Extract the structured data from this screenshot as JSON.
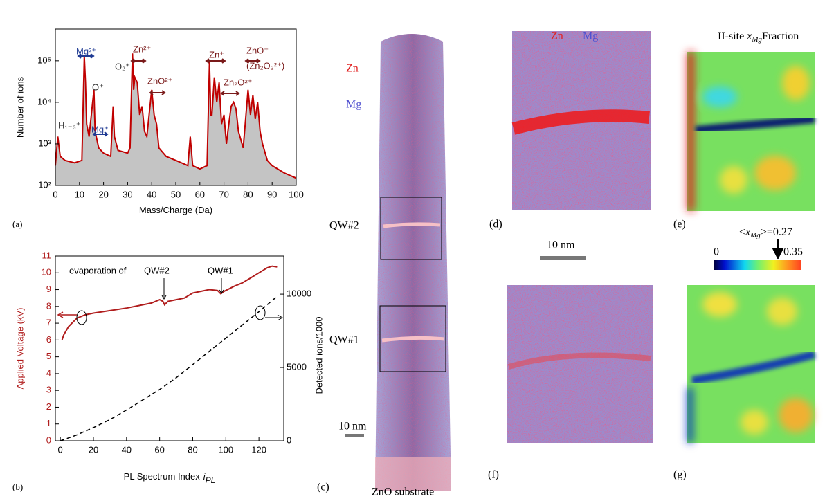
{
  "chart_data": [
    {
      "type": "line",
      "panel_label": "(a)",
      "xlabel": "Mass/Charge (Da)",
      "ylabel": "Number of ions",
      "log_scale_y": true,
      "xlim": [
        0,
        100
      ],
      "xticks": [
        0,
        10,
        20,
        30,
        40,
        50,
        60,
        70,
        80,
        90,
        100
      ],
      "ylim": [
        100,
        580000
      ],
      "yticks": [
        {
          "value": 100,
          "label": "10²"
        },
        {
          "value": 1000,
          "label": "10³"
        },
        {
          "value": 10000,
          "label": "10⁴"
        },
        {
          "value": 100000,
          "label": "10⁵"
        }
      ],
      "series": [
        {
          "color": "#c00000",
          "fill": "#c4c4c4",
          "x": [
            0,
            1,
            2,
            4,
            8,
            11,
            12,
            12.5,
            13,
            14,
            16,
            16.5,
            18,
            20,
            23,
            24,
            24.5,
            26,
            30,
            31,
            32,
            32.5,
            33,
            34,
            35,
            36,
            37,
            38,
            40,
            41,
            42,
            43,
            46,
            50,
            55,
            56,
            57,
            60,
            63,
            64,
            64.5,
            65,
            66,
            67,
            68,
            69,
            70,
            71,
            72,
            73,
            74,
            75,
            76,
            78,
            80,
            81,
            82,
            83,
            84,
            85,
            86,
            88,
            90,
            95,
            100
          ],
          "values": [
            300,
            1500,
            500,
            400,
            350,
            400,
            130000,
            30000,
            3000,
            1500,
            20000,
            2000,
            800,
            600,
            500,
            8000,
            1500,
            700,
            600,
            800,
            150000,
            20000,
            40000,
            30000,
            5000,
            8000,
            2000,
            1500,
            20000,
            5000,
            3000,
            800,
            500,
            400,
            300,
            1500,
            300,
            250,
            300,
            100000,
            5000,
            5000,
            40000,
            10000,
            30000,
            3000,
            5000,
            1000,
            3000,
            8000,
            10000,
            7000,
            2000,
            800,
            20000,
            5000,
            15000,
            4000,
            10000,
            2000,
            1000,
            400,
            300,
            200,
            150
          ]
        }
      ],
      "annotations": [
        {
          "text": "Mg²⁺",
          "color": "#1f3a93"
        },
        {
          "text": "O⁺",
          "color": "#333333"
        },
        {
          "text": "Mg⁺",
          "color": "#1f3a93"
        },
        {
          "text": "H₁₋₃⁺",
          "color": "#333333"
        },
        {
          "text": "O₂⁺",
          "color": "#333333"
        },
        {
          "text": "Zn²⁺",
          "color": "#7a1a1a"
        },
        {
          "text": "ZnO²⁺",
          "color": "#7a1a1a"
        },
        {
          "text": "Zn⁺",
          "color": "#7a1a1a"
        },
        {
          "text": "Zn₂O²⁺",
          "color": "#7a1a1a"
        },
        {
          "text": "ZnO⁺",
          "color": "#7a1a1a"
        },
        {
          "text": "(Zn₂O₂²⁺)",
          "color": "#7a1a1a"
        }
      ]
    },
    {
      "type": "line",
      "panel_label": "(b)",
      "xlabel": "PL Spectrum Index",
      "xlabel_var": "i",
      "xlabel_sub": "PL",
      "ylabel": "Applied Voltage (kV)",
      "ylabel_color": "#b01c1c",
      "y2label": "Detected ions/1000",
      "xlim": [
        -3,
        135
      ],
      "xticks": [
        0,
        20,
        40,
        60,
        80,
        100,
        120
      ],
      "ylim": [
        0,
        11
      ],
      "yticks": [
        0,
        1,
        2,
        3,
        4,
        5,
        6,
        7,
        8,
        9,
        10,
        11
      ],
      "y2lim": [
        0,
        12600
      ],
      "y2ticks": [
        0,
        5000,
        10000
      ],
      "series": [
        {
          "color": "#b01c1c",
          "x": [
            1,
            2,
            5,
            10,
            15,
            20,
            30,
            40,
            50,
            55,
            60,
            62,
            63,
            65,
            70,
            75,
            80,
            85,
            90,
            95,
            97,
            99,
            105,
            110,
            115,
            120,
            125,
            128,
            131
          ],
          "values": [
            6.0,
            6.3,
            6.8,
            7.3,
            7.5,
            7.6,
            7.75,
            7.9,
            8.1,
            8.2,
            8.4,
            8.3,
            8.1,
            8.3,
            8.4,
            8.5,
            8.8,
            8.9,
            9.0,
            8.95,
            8.75,
            8.9,
            9.2,
            9.4,
            9.7,
            10.0,
            10.3,
            10.4,
            10.35
          ]
        },
        {
          "color": "#000000",
          "dash": true,
          "axis": "y2",
          "x": [
            0,
            10,
            20,
            30,
            40,
            50,
            60,
            70,
            80,
            90,
            100,
            110,
            120,
            131
          ],
          "values": [
            0,
            400,
            900,
            1450,
            2100,
            2800,
            3500,
            4300,
            5200,
            6100,
            7000,
            7900,
            8800,
            9850
          ]
        }
      ],
      "annotations": [
        {
          "text": "evaporation of",
          "color": "#000000"
        },
        {
          "text": "QW#2",
          "color": "#000000"
        },
        {
          "text": "QW#1",
          "color": "#000000"
        }
      ]
    }
  ],
  "panels": {
    "c": {
      "label": "(c)",
      "zn": "Zn",
      "mg": "Mg",
      "qw2": "QW#2",
      "qw1": "QW#1",
      "scale": "10 nm",
      "substrate": "ZnO substrate"
    },
    "d": {
      "label": "(d)",
      "zn": "Zn",
      "mg": "Mg"
    },
    "e": {
      "label": "(e)",
      "title_prefix": "II-site",
      "title_var": "x",
      "title_sub": "Mg",
      "title_suffix": "Fraction"
    },
    "f": {
      "label": "(f)"
    },
    "g": {
      "label": "(g)"
    },
    "scale": "10 nm",
    "colorbar": {
      "min": 0,
      "max": 0.35,
      "mean_open": "<",
      "mean_var": "x",
      "mean_sub": "Mg",
      "mean_close": ">=",
      "mean": 0.27
    }
  }
}
